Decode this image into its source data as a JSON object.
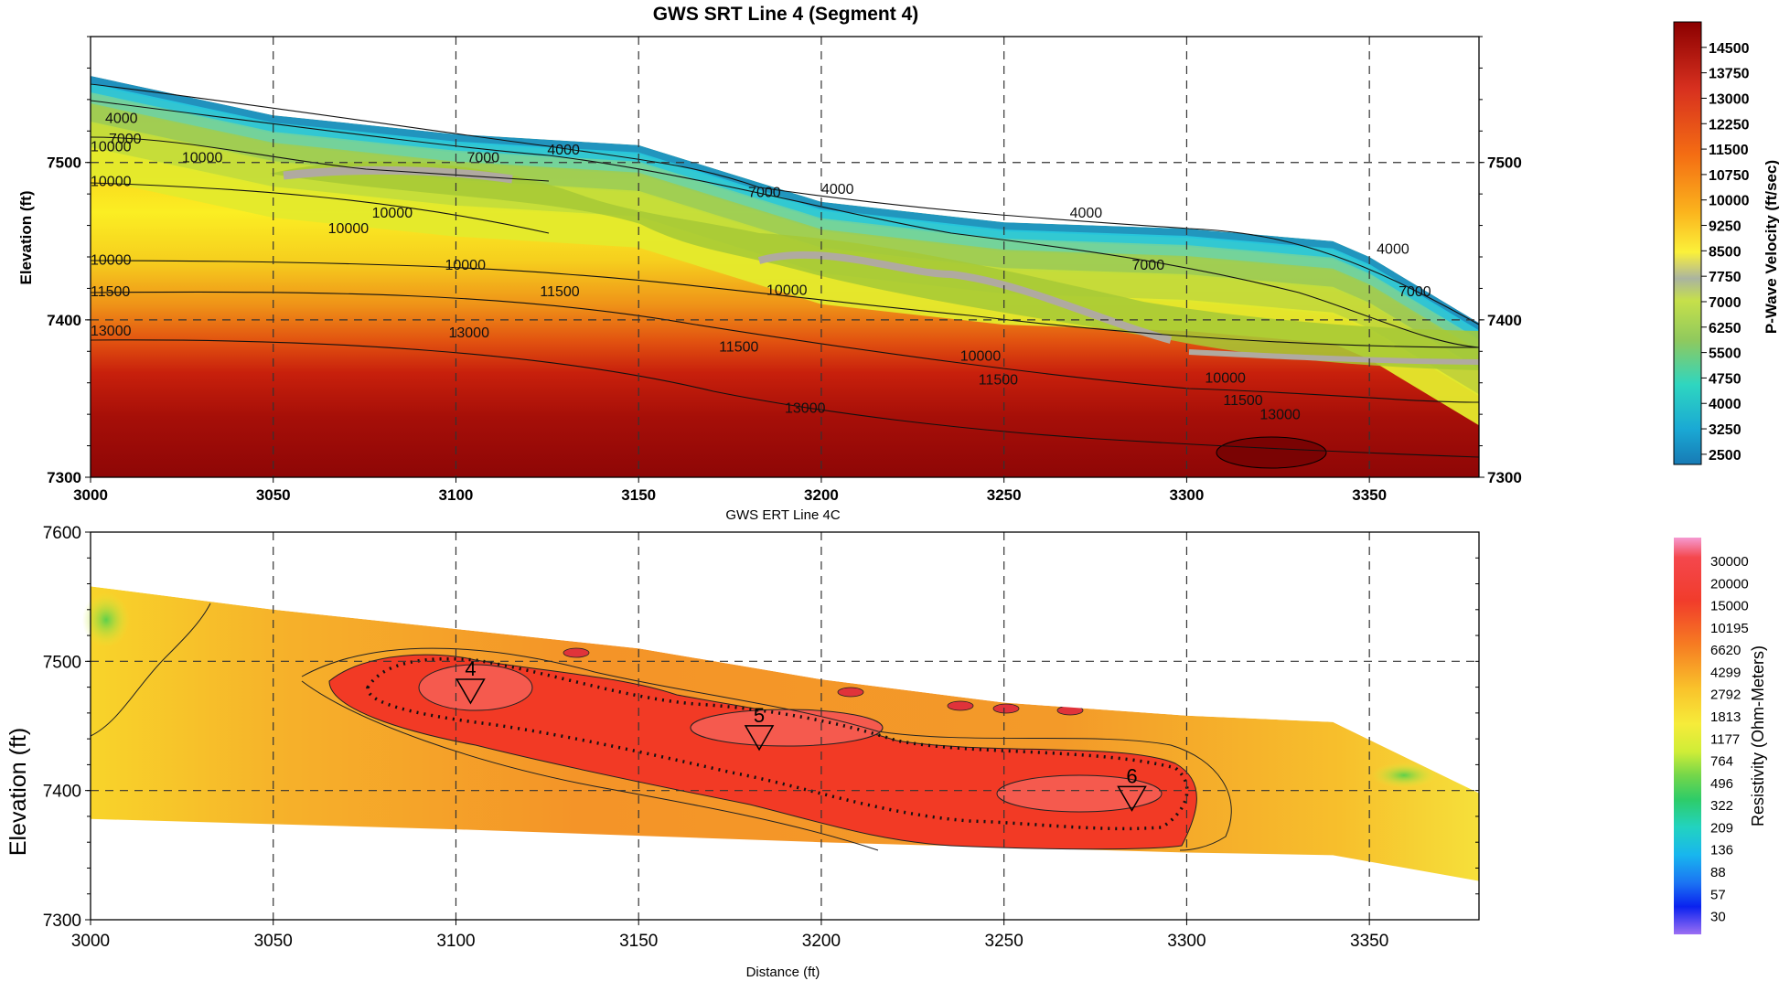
{
  "chart_data": [
    {
      "type": "heatmap",
      "title": "GWS SRT Line 4 (Segment 4)",
      "xlabel": "",
      "ylabel": "Elevation (ft)",
      "xlim": [
        3000,
        3380
      ],
      "ylim": [
        7300,
        7580
      ],
      "x_ticks": [
        "3000",
        "3050",
        "3100",
        "3150",
        "3200",
        "3250",
        "3300",
        "3350"
      ],
      "y_ticks": [
        "7300",
        "7400",
        "7500"
      ],
      "y_ticks_right": [
        "7300",
        "7400",
        "7500"
      ],
      "surface": [
        [
          3000,
          7555
        ],
        [
          3050,
          7530
        ],
        [
          3100,
          7518
        ],
        [
          3150,
          7511
        ],
        [
          3200,
          7475
        ],
        [
          3250,
          7462
        ],
        [
          3300,
          7458
        ],
        [
          3340,
          7450
        ],
        [
          3350,
          7440
        ],
        [
          3380,
          7398
        ]
      ],
      "colorbar": {
        "label": "P-Wave Velocity (ft/sec)",
        "ticks": [
          "14500",
          "13750",
          "13000",
          "12250",
          "11500",
          "10750",
          "10000",
          "9250",
          "8500",
          "7750",
          "7000",
          "6250",
          "5500",
          "4750",
          "4000",
          "3250",
          "2500"
        ]
      },
      "contour_labels": [
        {
          "text": "4000",
          "x": 3004,
          "y": 7525
        },
        {
          "text": "4000",
          "x": 3125,
          "y": 7505
        },
        {
          "text": "4000",
          "x": 3200,
          "y": 7480
        },
        {
          "text": "4000",
          "x": 3268,
          "y": 7465
        },
        {
          "text": "4000",
          "x": 3352,
          "y": 7442
        },
        {
          "text": "7000",
          "x": 3005,
          "y": 7512
        },
        {
          "text": "7000",
          "x": 3103,
          "y": 7500
        },
        {
          "text": "7000",
          "x": 3180,
          "y": 7478
        },
        {
          "text": "7000",
          "x": 3285,
          "y": 7432
        },
        {
          "text": "7000",
          "x": 3358,
          "y": 7415
        },
        {
          "text": "10000",
          "x": 3000,
          "y": 7507
        },
        {
          "text": "10000",
          "x": 3025,
          "y": 7500
        },
        {
          "text": "10000",
          "x": 3000,
          "y": 7485
        },
        {
          "text": "10000",
          "x": 3077,
          "y": 7465
        },
        {
          "text": "10000",
          "x": 3065,
          "y": 7455
        },
        {
          "text": "10000",
          "x": 3000,
          "y": 7435
        },
        {
          "text": "10000",
          "x": 3097,
          "y": 7432
        },
        {
          "text": "10000",
          "x": 3185,
          "y": 7416
        },
        {
          "text": "10000",
          "x": 3238,
          "y": 7374
        },
        {
          "text": "10000",
          "x": 3305,
          "y": 7360
        },
        {
          "text": "11500",
          "x": 3000,
          "y": 7415
        },
        {
          "text": "11500",
          "x": 3123,
          "y": 7415
        },
        {
          "text": "11500",
          "x": 3172,
          "y": 7380
        },
        {
          "text": "11500",
          "x": 3243,
          "y": 7359
        },
        {
          "text": "11500",
          "x": 3310,
          "y": 7346
        },
        {
          "text": "13000",
          "x": 3000,
          "y": 7390
        },
        {
          "text": "13000",
          "x": 3098,
          "y": 7389
        },
        {
          "text": "13000",
          "x": 3190,
          "y": 7341
        },
        {
          "text": "13000",
          "x": 3320,
          "y": 7337
        }
      ]
    },
    {
      "type": "heatmap",
      "title": "GWS ERT Line 4C",
      "xlabel": "Distance (ft)",
      "ylabel": "Elevation (ft)",
      "xlim": [
        3000,
        3380
      ],
      "ylim": [
        7300,
        7600
      ],
      "x_ticks": [
        "3000",
        "3050",
        "3100",
        "3150",
        "3200",
        "3250",
        "3300",
        "3350"
      ],
      "y_ticks": [
        "7300",
        "7400",
        "7500",
        "7600"
      ],
      "surface": [
        [
          3000,
          7558
        ],
        [
          3050,
          7540
        ],
        [
          3100,
          7525
        ],
        [
          3150,
          7510
        ],
        [
          3200,
          7486
        ],
        [
          3250,
          7468
        ],
        [
          3300,
          7458
        ],
        [
          3340,
          7453
        ],
        [
          3380,
          7398
        ]
      ],
      "bottom": [
        [
          3000,
          7378
        ],
        [
          3100,
          7370
        ],
        [
          3200,
          7360
        ],
        [
          3300,
          7352
        ],
        [
          3340,
          7350
        ],
        [
          3380,
          7330
        ]
      ],
      "colorbar": {
        "label": "Resistivity (Ohm-Meters)",
        "ticks": [
          "30000",
          "20000",
          "15000",
          "10195",
          "6620",
          "4299",
          "2792",
          "1813",
          "1177",
          "764",
          "496",
          "322",
          "209",
          "136",
          "88",
          "57",
          "30"
        ]
      },
      "annotations": [
        {
          "text": "4",
          "x": 3104,
          "y": 7479
        },
        {
          "text": "5",
          "x": 3183,
          "y": 7443
        },
        {
          "text": "6",
          "x": 3285,
          "y": 7396
        }
      ]
    }
  ]
}
